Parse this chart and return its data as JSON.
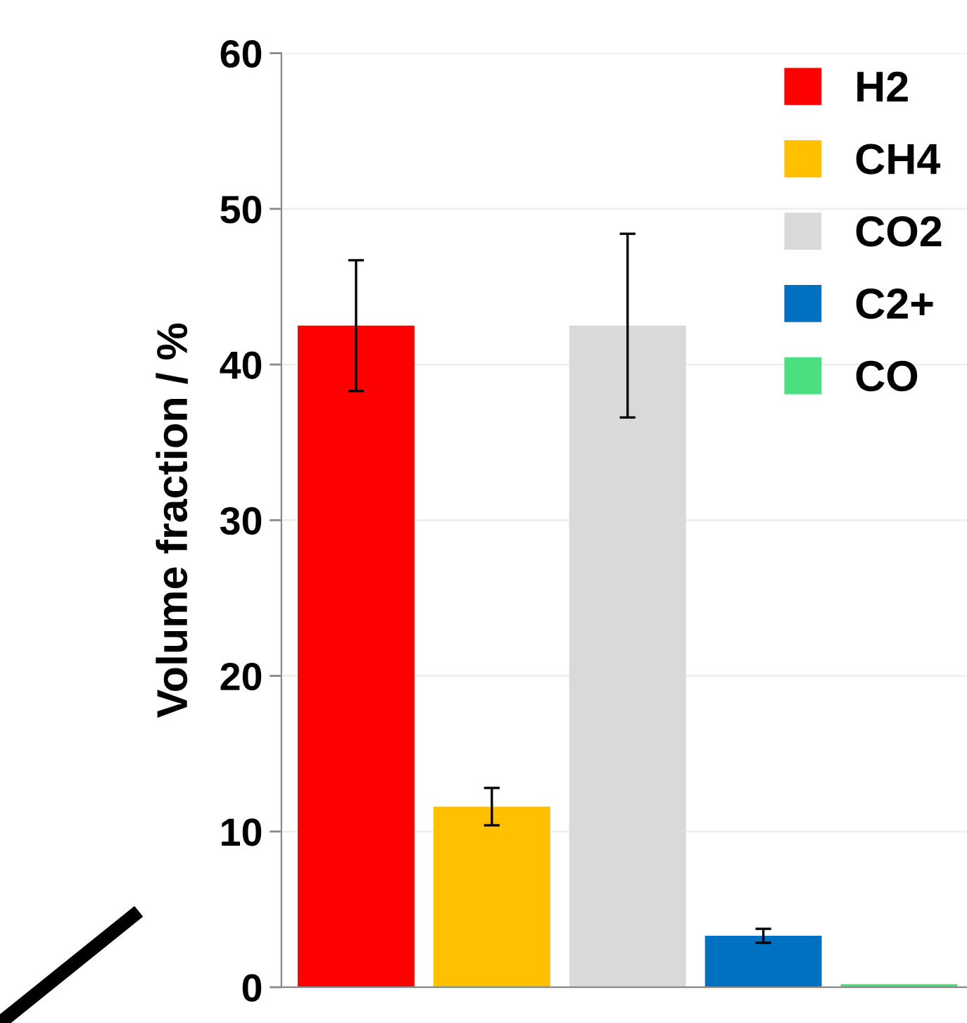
{
  "chart_data": {
    "type": "bar",
    "ylabel": "Volume fraction / %",
    "categories": [
      null,
      null,
      null,
      null,
      null
    ],
    "series": [
      {
        "name": "H2",
        "color": "#ff0000",
        "values": [
          42.5,
          null,
          null,
          null,
          null
        ],
        "errors": [
          4.2,
          null,
          null,
          null,
          null
        ]
      },
      {
        "name": "CH4",
        "color": "#ffc000",
        "values": [
          null,
          11.6,
          null,
          null,
          null
        ],
        "errors": [
          null,
          1.2,
          null,
          null,
          null
        ]
      },
      {
        "name": "CO2",
        "color": "#d9d9d9",
        "values": [
          null,
          null,
          42.5,
          null,
          null
        ],
        "errors": [
          null,
          null,
          5.9,
          null,
          null
        ]
      },
      {
        "name": "C2+",
        "color": "#0070c0",
        "values": [
          null,
          null,
          null,
          3.3,
          null
        ],
        "errors": [
          null,
          null,
          null,
          0.45,
          null
        ]
      },
      {
        "name": "CO",
        "color": "#4cdf80",
        "values": [
          null,
          null,
          null,
          null,
          0.2
        ]
      }
    ],
    "ylim": [
      0,
      60
    ],
    "yticks": [
      0,
      10,
      20,
      30,
      40,
      50,
      60
    ],
    "grid": "y",
    "legend": "top right",
    "tick_labels": "y"
  }
}
